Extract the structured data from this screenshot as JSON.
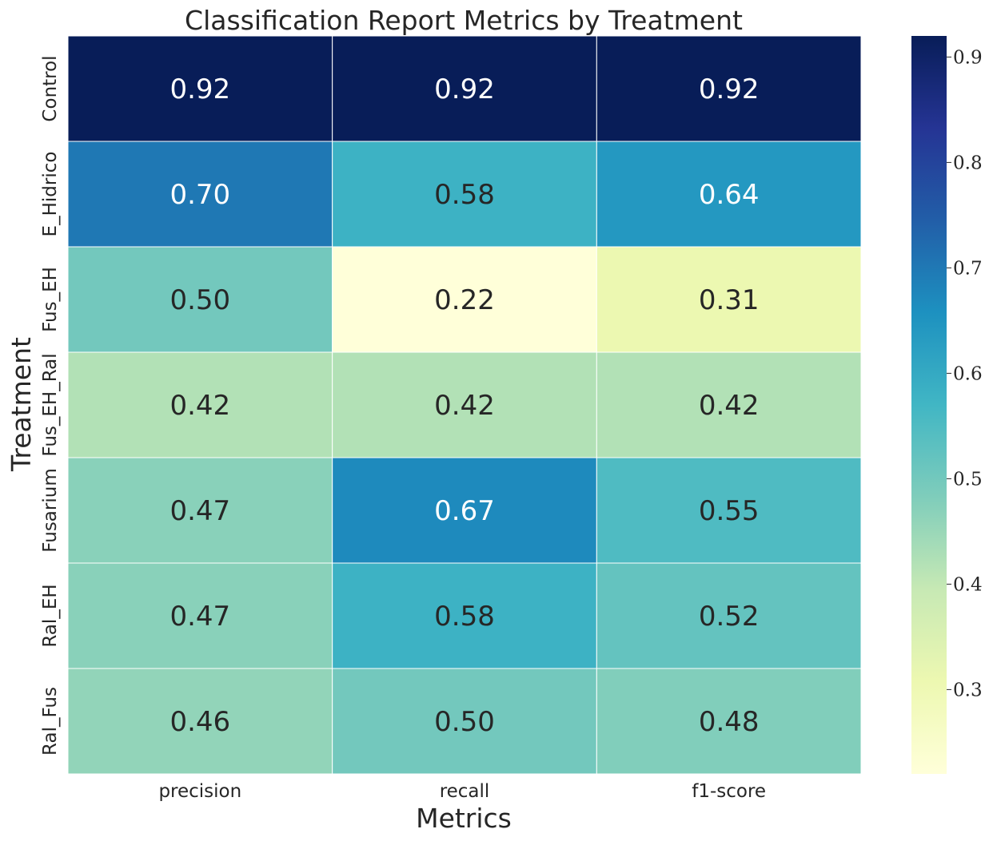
{
  "chart_data": {
    "type": "heatmap",
    "title": "Classification Report Metrics by Treatment",
    "xlabel": "Metrics",
    "ylabel": "Treatment",
    "columns": [
      "precision",
      "recall",
      "f1-score"
    ],
    "rows": [
      "Control",
      "E_Hidrico",
      "Fus_EH",
      "Fus_EH_Ral",
      "Fusarium",
      "Ral_EH",
      "Ral_Fus"
    ],
    "values": [
      [
        0.92,
        0.92,
        0.92
      ],
      [
        0.7,
        0.58,
        0.64
      ],
      [
        0.5,
        0.22,
        0.31
      ],
      [
        0.42,
        0.42,
        0.42
      ],
      [
        0.47,
        0.67,
        0.55
      ],
      [
        0.47,
        0.58,
        0.52
      ],
      [
        0.46,
        0.5,
        0.48
      ]
    ],
    "value_format": "0.00",
    "colormap": "YlGnBu",
    "color_range": [
      0.22,
      0.92
    ],
    "colorbar": {
      "ticks": [
        "0.3",
        "0.4",
        "0.5",
        "0.6",
        "0.7",
        "0.8",
        "0.9"
      ],
      "tick_values": [
        0.3,
        0.4,
        0.5,
        0.6,
        0.7,
        0.8,
        0.9
      ],
      "position": "right"
    },
    "colormap_stops": [
      "#ffffd9",
      "#edf8b1",
      "#c7e9b4",
      "#7fcdbb",
      "#41b6c4",
      "#1d91c0",
      "#225ea8",
      "#253494",
      "#081d58"
    ],
    "cell_border_color": "#ffffff",
    "text_color_dark": "#262626",
    "text_color_light": "#ffffff"
  }
}
